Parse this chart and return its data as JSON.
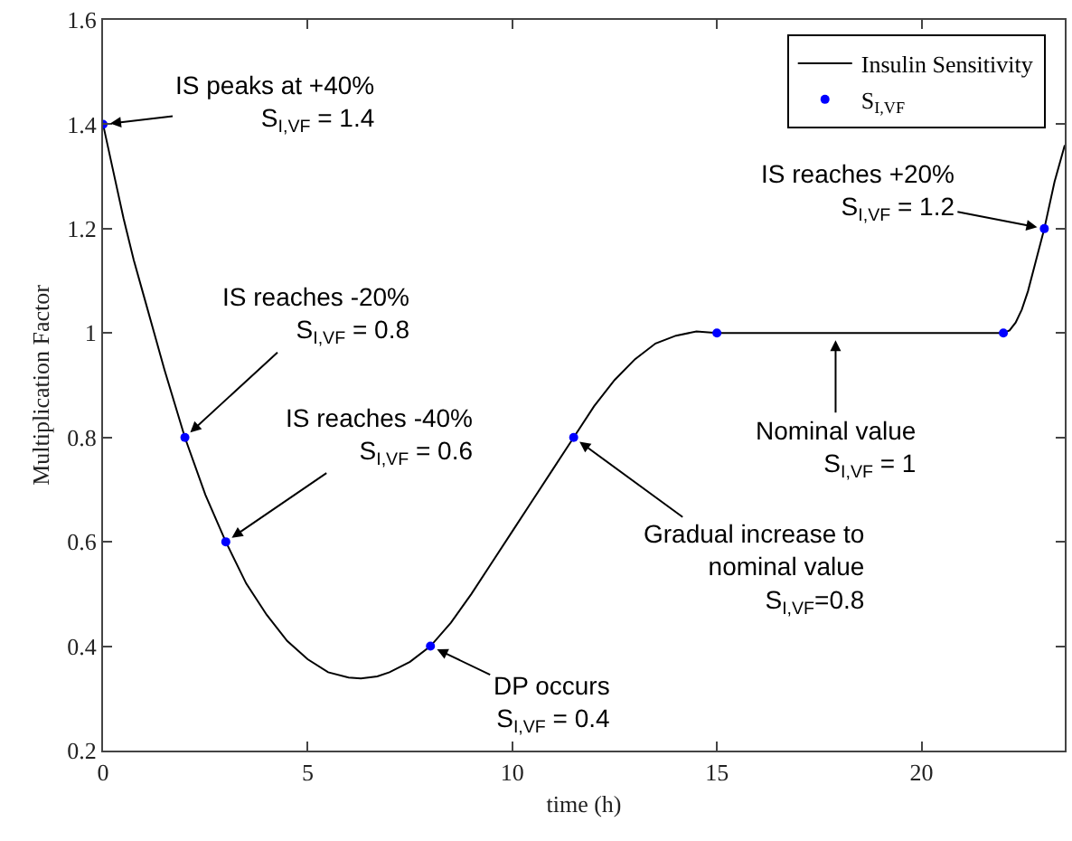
{
  "chart_data": {
    "type": "line",
    "xlabel": "time (h)",
    "ylabel": "Multiplication Factor",
    "xlim": [
      0,
      23.5
    ],
    "xticks": [
      0,
      5,
      10,
      15,
      20
    ],
    "ylim": [
      0.2,
      1.6
    ],
    "yticks": [
      0.2,
      0.4,
      0.6,
      0.8,
      1,
      1.2,
      1.4,
      1.6
    ],
    "grid": false,
    "legend": "top right",
    "series": [
      {
        "name": "Insulin Sensitivity",
        "color": "#000000",
        "line_style": "solid",
        "marker": "none",
        "x": [
          0,
          0.25,
          0.5,
          0.75,
          1,
          1.25,
          1.5,
          1.75,
          2,
          2.5,
          3,
          3.5,
          4,
          4.5,
          5,
          5.5,
          6,
          6.3,
          6.7,
          7,
          7.5,
          8,
          8.5,
          9,
          9.5,
          10,
          10.5,
          11,
          11.5,
          12,
          12.5,
          13,
          13.5,
          14,
          14.5,
          15,
          22,
          22.15,
          22.3,
          22.45,
          22.6,
          22.8,
          23,
          23.25,
          23.5
        ],
        "values": [
          1.4,
          1.31,
          1.22,
          1.14,
          1.07,
          1.0,
          0.93,
          0.865,
          0.8,
          0.69,
          0.6,
          0.52,
          0.46,
          0.41,
          0.375,
          0.35,
          0.34,
          0.338,
          0.342,
          0.35,
          0.37,
          0.4,
          0.445,
          0.5,
          0.56,
          0.62,
          0.68,
          0.74,
          0.8,
          0.86,
          0.91,
          0.95,
          0.98,
          0.995,
          1.003,
          1,
          1,
          1.005,
          1.02,
          1.045,
          1.08,
          1.14,
          1.2,
          1.29,
          1.36
        ]
      },
      {
        "name": "S$_{I,VF}$",
        "type": "scatter",
        "color": "#0000ff",
        "marker": "circle",
        "x": [
          0,
          2,
          3,
          8,
          11.5,
          15,
          22,
          23
        ],
        "values": [
          1.4,
          0.8,
          0.6,
          0.4,
          0.8,
          1,
          1,
          1.2
        ]
      }
    ],
    "annotations": [
      {
        "text": "IS peaks at +40%\nS$_{I,VF}$ = 1.4",
        "x": 0,
        "y": 1.4
      },
      {
        "text": "IS reaches -20%\nS$_{I,VF}$ = 0.8",
        "x": 2,
        "y": 0.8
      },
      {
        "text": "IS reaches -40%\nS$_{I,VF}$ = 0.6",
        "x": 3,
        "y": 0.6
      },
      {
        "text": "DP occurs\nS$_{I,VF}$ = 0.4",
        "x": 8,
        "y": 0.4
      },
      {
        "text": "Gradual increase to\nnominal value\nS$_{I,VF}$=0.8",
        "x": 11.5,
        "y": 0.8
      },
      {
        "text": "Nominal value\nS$_{I,VF}$ = 1",
        "x": 17.9,
        "y": 1
      },
      {
        "text": "IS reaches +20%\nS$_{I,VF}$ = 1.2",
        "x": 23,
        "y": 1.2
      }
    ]
  }
}
